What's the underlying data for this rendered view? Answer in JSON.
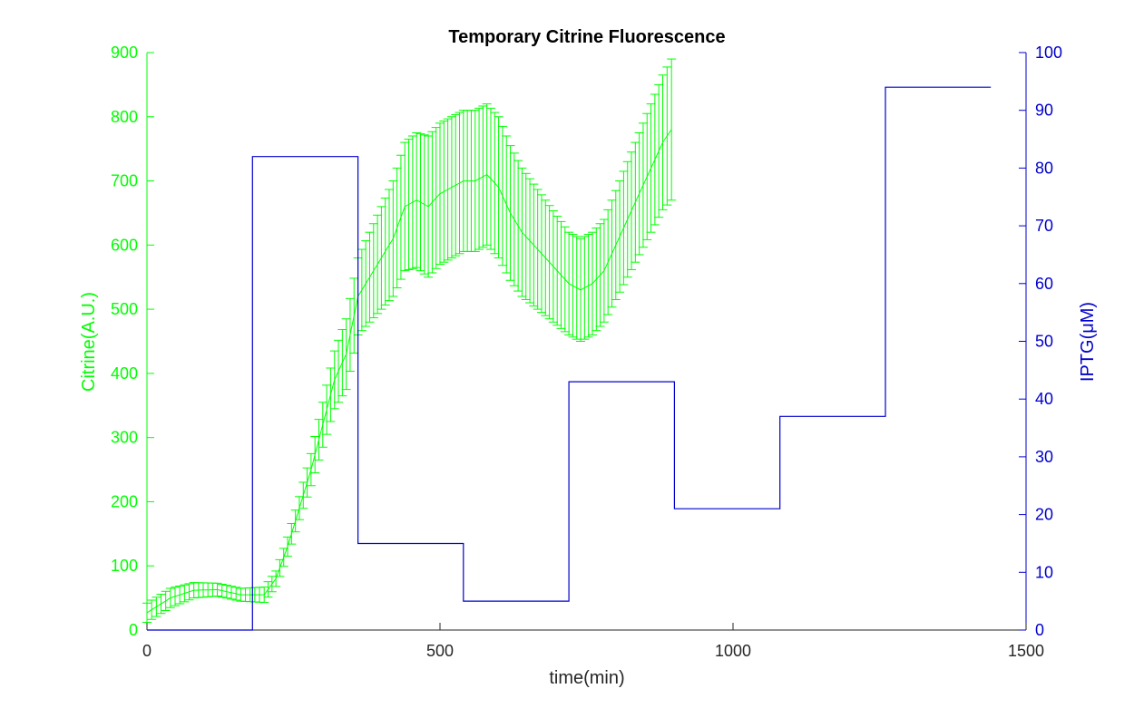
{
  "chart_data": {
    "type": "line",
    "title": "Temporary Citrine Fluorescence",
    "xlabel": "time(min)",
    "ylabel_left": "Citrine(A.U.)",
    "ylabel_right": "IPTG(μM)",
    "xlim": [
      0,
      1500
    ],
    "ylim_left": [
      0,
      900
    ],
    "ylim_right": [
      0,
      100
    ],
    "xticks": [
      "0",
      "500",
      "1000",
      "1500"
    ],
    "yticks_left": [
      "0",
      "100",
      "200",
      "300",
      "400",
      "500",
      "600",
      "700",
      "800",
      "900"
    ],
    "yticks_right": [
      "0",
      "10",
      "20",
      "30",
      "40",
      "50",
      "60",
      "70",
      "80",
      "90",
      "100"
    ],
    "grid": false,
    "legend": "none",
    "colors": {
      "citrine": "#00ff00",
      "iptg": "#0000cc",
      "axes": "#262626"
    },
    "series": [
      {
        "axis": "left",
        "style": "errorbar",
        "color": "#00ff00",
        "x": [
          0,
          40,
          80,
          120,
          160,
          200,
          220,
          240,
          260,
          280,
          300,
          320,
          340,
          360,
          380,
          400,
          420,
          440,
          460,
          480,
          500,
          520,
          540,
          560,
          580,
          600,
          620,
          640,
          660,
          680,
          700,
          720,
          740,
          760,
          780,
          800,
          820,
          840,
          860,
          880,
          895
        ],
        "y": [
          27,
          50,
          62,
          63,
          55,
          55,
          80,
          130,
          190,
          250,
          320,
          390,
          430,
          520,
          550,
          580,
          610,
          660,
          670,
          660,
          680,
          690,
          700,
          700,
          710,
          690,
          650,
          620,
          600,
          580,
          560,
          540,
          530,
          540,
          560,
          600,
          640,
          680,
          720,
          760,
          780
        ],
        "err": [
          15,
          15,
          12,
          10,
          10,
          12,
          12,
          15,
          18,
          25,
          35,
          45,
          55,
          60,
          70,
          80,
          90,
          100,
          105,
          110,
          110,
          110,
          110,
          110,
          110,
          110,
          105,
          100,
          95,
          90,
          85,
          80,
          80,
          80,
          80,
          85,
          90,
          95,
          100,
          105,
          110
        ]
      },
      {
        "axis": "right",
        "style": "step",
        "color": "#0000cc",
        "x": [
          0,
          180,
          180,
          360,
          360,
          540,
          540,
          720,
          720,
          900,
          900,
          1080,
          1080,
          1260,
          1260,
          1440
        ],
        "y": [
          0,
          0,
          82,
          82,
          15,
          15,
          5,
          5,
          43,
          43,
          21,
          21,
          37,
          37,
          94,
          94
        ]
      }
    ]
  }
}
